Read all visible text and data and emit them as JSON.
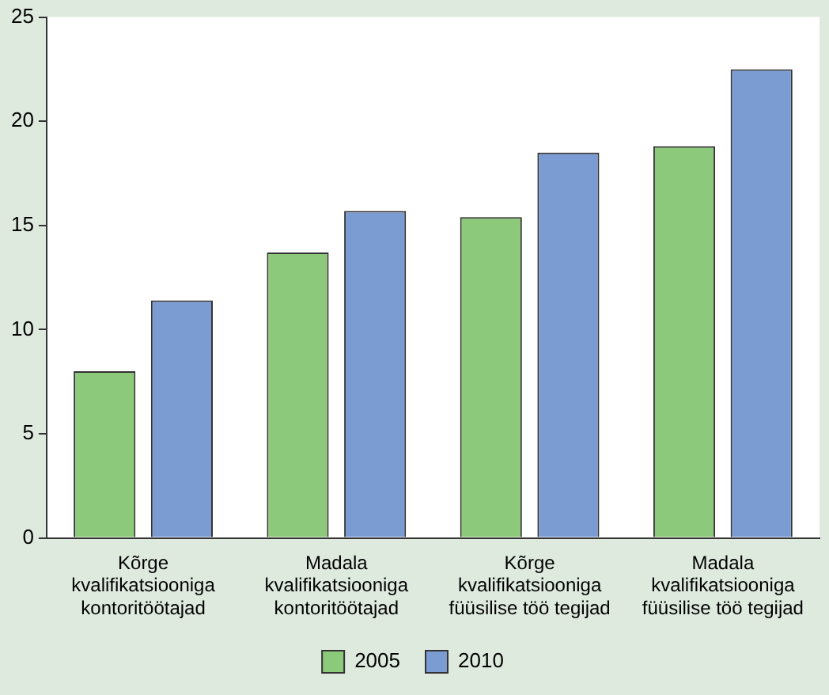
{
  "chart_data": {
    "type": "bar",
    "categories": [
      "Kõrge kvalifikatsiooniga kontoritöötajad",
      "Madala kvalifikatsiooniga kontoritöötajad",
      "Kõrge kvalifikatsiooniga füüsilise töö tegijad",
      "Madala kvalifikatsiooniga füüsilise töö tegijad"
    ],
    "series": [
      {
        "name": "2005",
        "color": "#8cc97a",
        "values": [
          8.0,
          13.7,
          15.4,
          18.8
        ]
      },
      {
        "name": "2010",
        "color": "#7b9bd3",
        "values": [
          11.4,
          15.7,
          18.5,
          22.5
        ]
      }
    ],
    "ylim": [
      0,
      25
    ],
    "yticks": [
      0,
      5,
      10,
      15,
      20,
      25
    ],
    "grid": false,
    "legend": "bottom"
  }
}
